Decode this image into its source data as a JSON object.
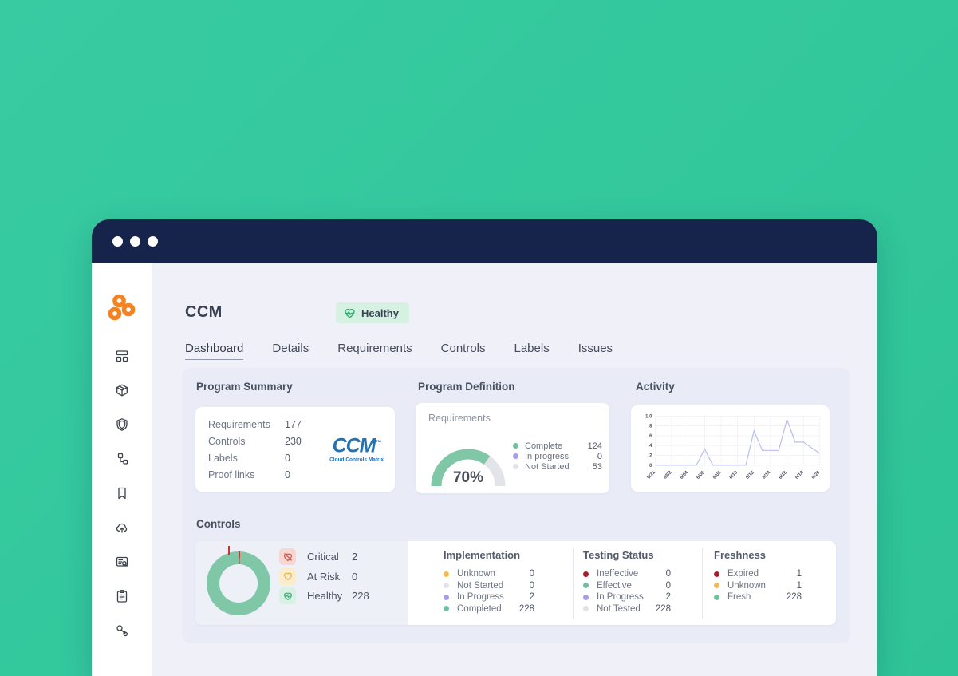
{
  "header": {
    "title": "CCM",
    "badge": "Healthy"
  },
  "tabs": {
    "items": [
      {
        "label": "Dashboard",
        "active": true
      },
      {
        "label": "Details",
        "active": false
      },
      {
        "label": "Requirements",
        "active": false
      },
      {
        "label": "Controls",
        "active": false
      },
      {
        "label": "Labels",
        "active": false
      },
      {
        "label": "Issues",
        "active": false
      }
    ]
  },
  "sidebar": {
    "icons": [
      "dashboard-icon",
      "package-icon",
      "shield-icon",
      "workflow-icon",
      "bookmark-icon",
      "cloud-upload-icon",
      "list-search-icon",
      "clipboard-icon",
      "keys-icon"
    ]
  },
  "program_summary": {
    "heading": "Program Summary",
    "rows": [
      {
        "label": "Requirements",
        "value": "177"
      },
      {
        "label": "Controls",
        "value": "230"
      },
      {
        "label": "Labels",
        "value": "0"
      },
      {
        "label": "Proof links",
        "value": "0"
      }
    ],
    "logo": {
      "text": "CCM",
      "tm": "™",
      "subtext": "Cloud Controls Matrix"
    }
  },
  "program_definition": {
    "heading": "Program Definition",
    "subtitle": "Requirements",
    "gauge_label": "70%",
    "legend": [
      {
        "label": "Complete",
        "value": "124"
      },
      {
        "label": "In progress",
        "value": "0"
      },
      {
        "label": "Not Started",
        "value": "53"
      }
    ]
  },
  "activity": {
    "heading": "Activity"
  },
  "controls": {
    "heading": "Controls",
    "health": [
      {
        "label": "Critical",
        "value": "2"
      },
      {
        "label": "At Risk",
        "value": "0"
      },
      {
        "label": "Healthy",
        "value": "228"
      }
    ],
    "columns": [
      {
        "title": "Implementation",
        "items": [
          {
            "label": "Unknown",
            "value": "0"
          },
          {
            "label": "Not Started",
            "value": "0"
          },
          {
            "label": "In Progress",
            "value": "2"
          },
          {
            "label": "Completed",
            "value": "228"
          }
        ]
      },
      {
        "title": "Testing Status",
        "items": [
          {
            "label": "Ineffective",
            "value": "0"
          },
          {
            "label": "Effective",
            "value": "0"
          },
          {
            "label": "In Progress",
            "value": "2"
          },
          {
            "label": "Not Tested",
            "value": "228"
          }
        ]
      },
      {
        "title": "Freshness",
        "items": [
          {
            "label": "Expired",
            "value": "1"
          },
          {
            "label": "Unknown",
            "value": "1"
          },
          {
            "label": "Fresh",
            "value": "228"
          }
        ]
      }
    ]
  },
  "chart_data": [
    {
      "id": "requirements-gauge",
      "type": "gauge",
      "title": "Requirements",
      "percent": 70,
      "ylim": [
        0,
        100
      ],
      "segments": [
        {
          "label": "Complete",
          "value": 124,
          "color": "#7fc7a6"
        },
        {
          "label": "In progress",
          "value": 0,
          "color": "#a89cf0"
        },
        {
          "label": "Not Started",
          "value": 53,
          "color": "#e3e4ea"
        }
      ]
    },
    {
      "id": "activity-line",
      "type": "line",
      "title": "Activity",
      "x": [
        "5/31",
        "6/01",
        "6/02",
        "6/03",
        "6/04",
        "6/05",
        "6/06",
        "6/07",
        "6/08",
        "6/09",
        "6/10",
        "6/11",
        "6/12",
        "6/13",
        "6/14",
        "6/15",
        "6/16",
        "6/17",
        "6/18",
        "6/19",
        "6/20"
      ],
      "values": [
        0,
        0,
        0,
        0,
        0,
        0,
        0.33,
        0,
        0,
        0,
        0,
        0,
        0.7,
        0.3,
        0.3,
        0.3,
        0.93,
        0.47,
        0.47,
        0.35,
        0.24
      ],
      "ylim": [
        0,
        1
      ],
      "ytick_values": [
        0,
        0.2,
        0.4,
        0.6,
        0.8,
        1
      ],
      "ytick_labels": [
        "0",
        ".2",
        ".4",
        ".6",
        ".8",
        "1.0"
      ],
      "xtick_every": 2,
      "grid": true,
      "legend": "none",
      "line_color": "#b9bfee"
    },
    {
      "id": "controls-health-donut",
      "type": "pie",
      "title": "Controls",
      "segments": [
        {
          "label": "Critical",
          "value": 2,
          "color": "#c9342c"
        },
        {
          "label": "At Risk",
          "value": 0,
          "color": "#f3bd4d"
        },
        {
          "label": "Healthy",
          "value": 228,
          "color": "#7fc7a6"
        }
      ]
    }
  ],
  "colors": {
    "background_teal": "#32c79c",
    "titlebar_navy": "#16234a",
    "panel_lavender": "#e9ebf7",
    "brand_orange": "#f58220",
    "ccm_logo_blue": "#2472b2",
    "healthy_green": "#46b383",
    "critical_red": "#c9342c",
    "at_risk_yellow": "#f3bd4d",
    "in_progress_purple": "#a89cf0",
    "not_started_gray": "#e2e2e8",
    "line_periwinkle": "#b9bfee"
  }
}
